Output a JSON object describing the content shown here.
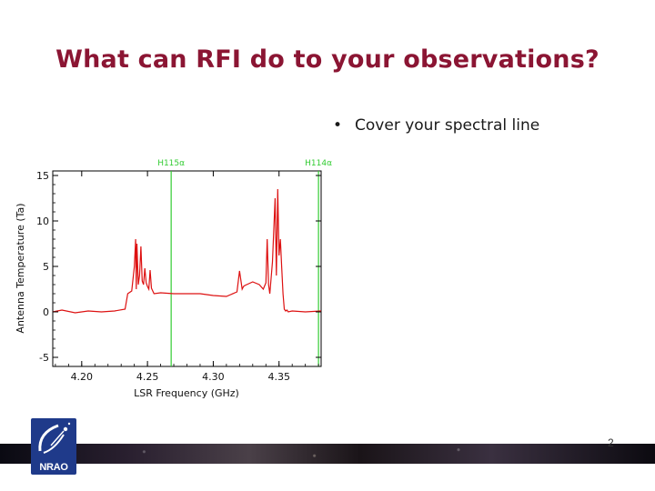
{
  "slide": {
    "title": "What can RFI do to your observations?",
    "bullet": "Cover your spectral line",
    "page_number": "2",
    "logo_text": "NRAO"
  },
  "colors": {
    "title": "#8b1533",
    "spectrum": "#dd1111",
    "marker": "#33cc33",
    "logo": "#1f3a8a"
  },
  "chart_data": {
    "type": "line",
    "xlabel": "LSR Frequency (GHz)",
    "ylabel": "Antenna Temperature (Ta)",
    "xlim": [
      4.178,
      4.382
    ],
    "ylim": [
      -6,
      15.5
    ],
    "xticks": [
      4.2,
      4.25,
      4.3,
      4.35
    ],
    "xtick_labels": [
      "4.20",
      "4.25",
      "4.30",
      "4.35"
    ],
    "yticks": [
      -5,
      0,
      5,
      10,
      15
    ],
    "ytick_labels": [
      "-5",
      "0",
      "5",
      "10",
      "15"
    ],
    "markers": [
      {
        "label": "H115α",
        "x": 4.268
      },
      {
        "label": "H114α",
        "x": 4.38
      }
    ],
    "series": [
      {
        "x": [
          4.178,
          4.185,
          4.195,
          4.205,
          4.215,
          4.225,
          4.233,
          4.235,
          4.238,
          4.24,
          4.241,
          4.2415,
          4.242,
          4.243,
          4.244,
          4.245,
          4.246,
          4.247,
          4.248,
          4.249,
          4.25,
          4.251,
          4.252,
          4.253,
          4.255,
          4.26,
          4.27,
          4.28,
          4.29,
          4.3,
          4.31,
          4.318,
          4.32,
          4.322,
          4.323,
          4.324,
          4.33,
          4.335,
          4.338,
          4.34,
          4.341,
          4.342,
          4.343,
          4.345,
          4.347,
          4.348,
          4.349,
          4.35,
          4.351,
          4.352,
          4.353,
          4.354,
          4.355,
          4.356,
          4.357,
          4.36,
          4.37,
          4.382
        ],
        "y": [
          0,
          0.2,
          -0.1,
          0.1,
          0,
          0.1,
          0.3,
          2.0,
          2.3,
          5.0,
          8.0,
          2.5,
          7.5,
          3.0,
          4.0,
          7.2,
          3.4,
          3.0,
          4.8,
          3.2,
          2.8,
          2.5,
          4.6,
          2.6,
          2.0,
          2.1,
          2.0,
          2.0,
          2.0,
          1.8,
          1.7,
          2.2,
          4.5,
          2.5,
          2.8,
          2.9,
          3.3,
          3.0,
          2.5,
          3.2,
          8.0,
          3.0,
          2.0,
          5.5,
          12.5,
          4.0,
          13.5,
          6.2,
          8.0,
          5.0,
          2.0,
          0.3,
          0.1,
          0.2,
          0,
          0.1,
          0,
          0.1
        ],
        "color": "#dd1111"
      }
    ],
    "grid": false
  }
}
